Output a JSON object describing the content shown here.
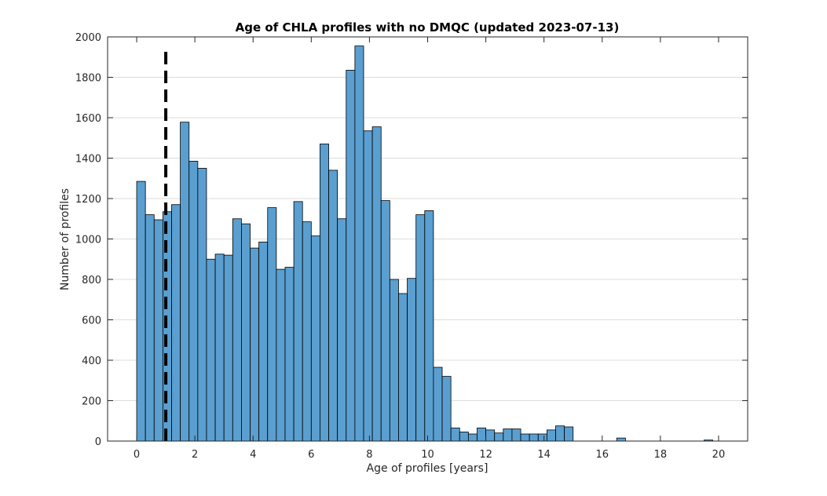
{
  "chart_data": {
    "type": "bar",
    "title": "Age of CHLA profiles with no DMQC (updated 2023-07-13)",
    "xlabel": "Age of profiles [years]",
    "ylabel": "Number of profiles",
    "xlim": [
      -1,
      21
    ],
    "ylim": [
      0,
      2000
    ],
    "xticks": [
      0,
      2,
      4,
      6,
      8,
      10,
      12,
      14,
      16,
      18,
      20
    ],
    "yticks": [
      0,
      200,
      400,
      600,
      800,
      1000,
      1200,
      1400,
      1600,
      1800,
      2000
    ],
    "grid": true,
    "bin_width_years": 0.3,
    "bin_start_years": 0,
    "values": [
      1285,
      1120,
      1095,
      1135,
      1170,
      1578,
      1385,
      1350,
      900,
      925,
      920,
      1100,
      1075,
      955,
      985,
      1155,
      850,
      860,
      1185,
      1085,
      1015,
      1470,
      1340,
      1100,
      1835,
      1955,
      1535,
      1555,
      1190,
      800,
      730,
      805,
      1120,
      1140,
      365,
      320,
      65,
      45,
      35,
      65,
      55,
      40,
      60,
      60,
      35,
      35,
      35,
      55,
      75,
      70,
      0,
      0,
      0,
      0,
      0,
      15,
      0,
      0,
      0,
      0,
      0,
      0,
      0,
      0,
      0,
      5
    ],
    "reference_line": {
      "x": 1,
      "style": "dashed",
      "y_top": 1940
    },
    "colors": {
      "bar_fill": "#5a9fd0",
      "bar_edge": "#000000",
      "reference_line": "#000000"
    }
  }
}
